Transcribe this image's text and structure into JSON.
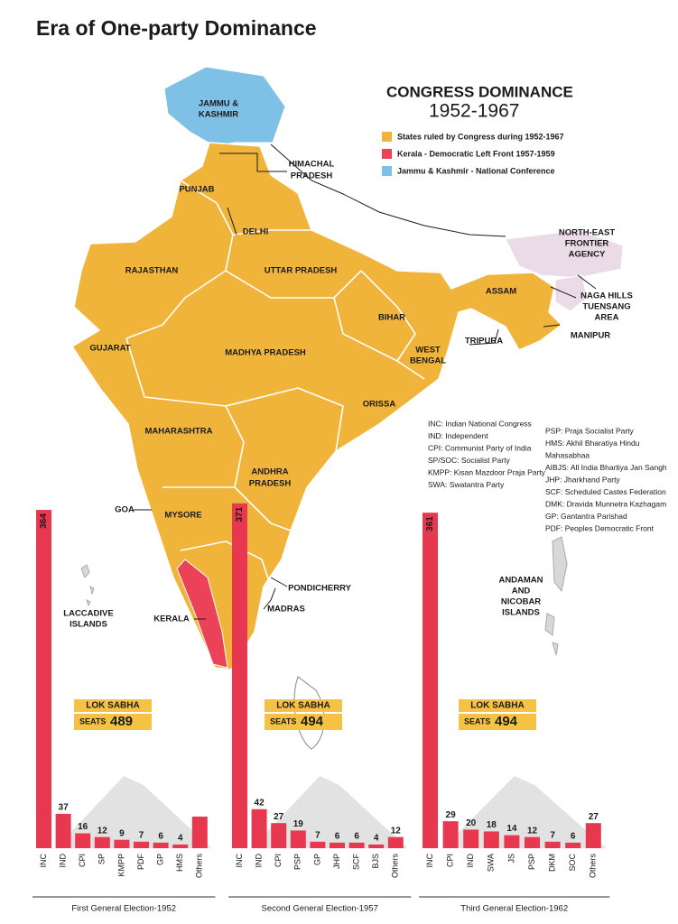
{
  "title": "Era of One-party Dominance",
  "map": {
    "heading": "CONGRESS DOMINANCE",
    "period": "1952-1967",
    "legend": [
      {
        "label": "States ruled by Congress during 1952-1967",
        "color": "#f0b43a"
      },
      {
        "label": "Kerala - Democratic Left Front 1957-1959",
        "color": "#ec4257"
      },
      {
        "label": "Jammu & Kashmir - National Conference",
        "color": "#7fc1e6"
      }
    ],
    "labels": [
      "JAMMU &",
      "KASHMIR",
      "HIMACHAL",
      "PRADESH",
      "PUNJAB",
      "DELHI",
      "RAJASTHAN",
      "UTTAR PRADESH",
      "NORTH-EAST",
      "FRONTIER",
      "AGENCY",
      "ASSAM",
      "NAGA HILLS",
      "TUENSANG",
      "AREA",
      "BIHAR",
      "MANIPUR",
      "TRIPURA",
      "GUJARAT",
      "MADHYA PRADESH",
      "WEST",
      "BENGAL",
      "ORISSA",
      "MAHARASHTRA",
      "ANDHRA",
      "PRADESH",
      "GOA",
      "MYSORE",
      "LACCADIVE",
      "ISLANDS",
      "PONDICHERRY",
      "MADRAS",
      "KERALA",
      "ANDAMAN",
      "AND",
      "NICOBAR",
      "ISLANDS"
    ]
  },
  "abbreviations": {
    "left": [
      "INC: Indian National Congress",
      "IND: Independent",
      "CPI: Communist Party of India",
      "SP/SOC: Socialist Party",
      "KMPP: Kisan Mazdoor Praja Party",
      "SWA: Swatantra Party"
    ],
    "right": [
      "PSP: Praja Socialist Party",
      "HMS: Akhil Bharatiya Hindu",
      "Mahasabhaa",
      "AIBJS: All India Bhartiya Jan Sangh",
      "JHP: Jharkhand Party",
      "SCF: Scheduled Castes Federation",
      "DMK: Dravida Munnetra Kazhagam",
      "GP: Gantantra Parishad",
      "PDF: Peoples Democratic Front"
    ]
  },
  "chart_data": [
    {
      "type": "bar",
      "title": "First General Election-1952",
      "color": "#e8384f",
      "categories": [
        "INC",
        "IND",
        "CPI",
        "SP",
        "KMPP",
        "PDF",
        "GP",
        "HMS",
        "Others"
      ],
      "values": [
        364,
        37,
        16,
        12,
        9,
        7,
        6,
        4,
        34
      ],
      "value_labels": [
        "364",
        "37",
        "16",
        "12",
        "9",
        "7",
        "6",
        "4",
        null
      ],
      "box_label": "LOK SABHA",
      "seats_label": "SEATS",
      "seats": 489
    },
    {
      "type": "bar",
      "title": "Second General Election-1957",
      "color": "#e8384f",
      "categories": [
        "INC",
        "IND",
        "CPI",
        "PSP",
        "GP",
        "JHP",
        "SCF",
        "BJS",
        "Others"
      ],
      "values": [
        371,
        42,
        27,
        19,
        7,
        6,
        6,
        4,
        12
      ],
      "box_label": "LOK SABHA",
      "seats_label": "SEATS",
      "seats": 494
    },
    {
      "type": "bar",
      "title": "Third General Election-1962",
      "color": "#e8384f",
      "categories": [
        "INC",
        "CPI",
        "IND",
        "SWA",
        "JS",
        "PSP",
        "DKM",
        "SOC",
        "Others"
      ],
      "values": [
        361,
        29,
        20,
        18,
        14,
        12,
        7,
        6,
        27
      ],
      "box_label": "LOK SABHA",
      "seats_label": "SEATS",
      "seats": 494
    }
  ]
}
